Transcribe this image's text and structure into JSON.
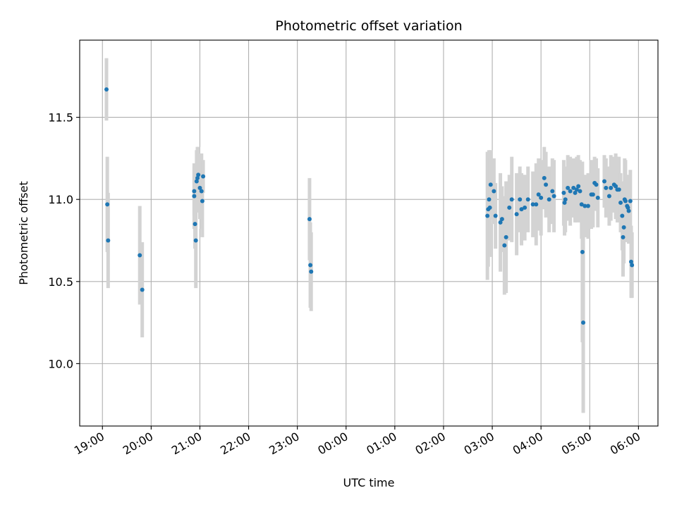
{
  "chart_data": {
    "type": "scatter",
    "title": "Photometric offset variation",
    "xlabel": "UTC time",
    "ylabel": "Photometric offset",
    "x_tick_labels": [
      "19:00",
      "20:00",
      "21:00",
      "22:00",
      "23:00",
      "00:00",
      "01:00",
      "02:00",
      "03:00",
      "04:00",
      "05:00",
      "06:00"
    ],
    "y_tick_values": [
      10.0,
      10.5,
      11.0,
      11.5
    ],
    "y_tick_labels": [
      "10.0",
      "10.5",
      "11.0",
      "11.5"
    ],
    "xlim": [
      "18:32",
      "06:24"
    ],
    "ylim": [
      9.62,
      11.97
    ],
    "grid": true,
    "colors": {
      "point": "#1f77b4",
      "errorbar": "#d3d3d3"
    },
    "series": [
      {
        "x": [
          "19:05",
          "19:06",
          "19:07",
          "19:46",
          "19:49",
          "20:53",
          "20:53",
          "20:54",
          "20:55",
          "20:56",
          "20:57",
          "20:58",
          "21:00",
          "21:02",
          "21:03",
          "21:04",
          "23:15",
          "23:16",
          "23:17",
          "02:54",
          "02:55",
          "02:56",
          "02:57",
          "02:58",
          "03:02",
          "03:04",
          "03:10",
          "03:12",
          "03:15",
          "03:17",
          "03:21",
          "03:24",
          "03:30",
          "03:34",
          "03:36",
          "03:40",
          "03:44",
          "03:50",
          "03:54",
          "03:57",
          "04:00",
          "04:04",
          "04:06",
          "04:10",
          "04:14",
          "04:16",
          "04:28",
          "04:29",
          "04:30",
          "04:33",
          "04:36",
          "04:40",
          "04:42",
          "04:44",
          "04:46",
          "04:48",
          "04:50",
          "04:51",
          "04:52",
          "04:54",
          "04:58",
          "05:02",
          "05:04",
          "05:06",
          "05:08",
          "05:10",
          "05:18",
          "05:20",
          "05:24",
          "05:26",
          "05:30",
          "05:32",
          "05:34",
          "05:36",
          "05:38",
          "05:40",
          "05:41",
          "05:42",
          "05:43",
          "05:44",
          "05:46",
          "05:47",
          "05:48",
          "05:50",
          "05:51",
          "05:52"
        ],
        "y": [
          11.67,
          10.97,
          10.75,
          10.66,
          10.45,
          11.05,
          11.02,
          10.85,
          10.75,
          11.11,
          11.13,
          11.15,
          11.07,
          11.05,
          10.99,
          11.14,
          10.88,
          10.6,
          10.56,
          10.9,
          10.94,
          11.0,
          10.95,
          11.09,
          11.05,
          10.9,
          10.86,
          10.88,
          10.72,
          10.77,
          10.95,
          11.0,
          10.91,
          11.0,
          10.94,
          10.95,
          11.0,
          10.97,
          10.97,
          11.03,
          11.01,
          11.13,
          11.09,
          11.0,
          11.05,
          11.02,
          11.04,
          10.98,
          11.0,
          11.07,
          11.05,
          11.07,
          11.04,
          11.06,
          11.08,
          11.05,
          10.97,
          10.68,
          10.25,
          10.96,
          10.96,
          11.03,
          11.03,
          11.1,
          11.09,
          11.01,
          11.11,
          11.07,
          11.02,
          11.07,
          11.09,
          11.08,
          11.06,
          11.06,
          10.98,
          10.9,
          10.77,
          10.83,
          11.0,
          10.99,
          10.96,
          10.95,
          10.93,
          10.99,
          10.62,
          10.6
        ],
        "err": [
          0.19,
          0.29,
          0.29,
          0.3,
          0.29,
          0.15,
          0.2,
          0.15,
          0.29,
          0.19,
          0.19,
          0.17,
          0.19,
          0.23,
          0.22,
          0.1,
          0.25,
          0.26,
          0.24,
          0.39,
          0.35,
          0.3,
          0.3,
          0.21,
          0.2,
          0.2,
          0.3,
          0.2,
          0.3,
          0.34,
          0.2,
          0.26,
          0.25,
          0.2,
          0.22,
          0.2,
          0.2,
          0.2,
          0.25,
          0.22,
          0.23,
          0.19,
          0.2,
          0.2,
          0.2,
          0.22,
          0.2,
          0.2,
          0.2,
          0.2,
          0.21,
          0.18,
          0.18,
          0.2,
          0.19,
          0.19,
          0.21,
          0.55,
          0.55,
          0.19,
          0.2,
          0.21,
          0.2,
          0.16,
          0.16,
          0.18,
          0.16,
          0.18,
          0.18,
          0.2,
          0.17,
          0.2,
          0.2,
          0.2,
          0.18,
          0.21,
          0.24,
          0.22,
          0.25,
          0.25,
          0.18,
          0.2,
          0.2,
          0.19,
          0.22,
          0.2
        ]
      }
    ]
  }
}
